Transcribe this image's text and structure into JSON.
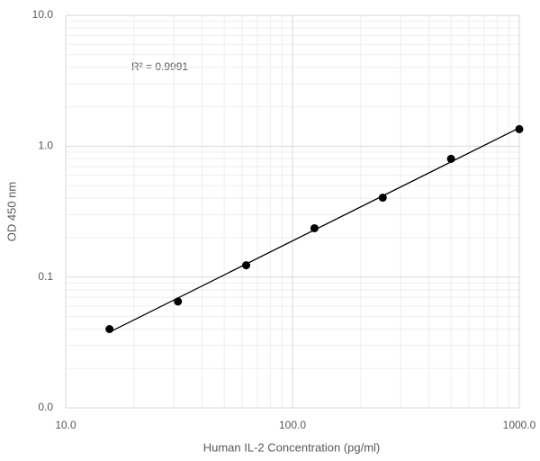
{
  "chart_data": {
    "type": "scatter",
    "x_label": "Human IL-2 Concentration (pg/ml)",
    "y_label": "OD 450 nm",
    "annotation": "R² = 0.9991",
    "x": [
      15.6,
      31.25,
      62.5,
      125,
      250,
      500,
      1000
    ],
    "values": [
      0.04,
      0.065,
      0.123,
      0.236,
      0.404,
      0.8,
      1.35
    ],
    "color": "#000000",
    "trendline": "power",
    "xlim": [
      10,
      1000
    ],
    "ylim": [
      0.01,
      10
    ],
    "xticks": [
      {
        "value": 10,
        "label": "10.0"
      },
      {
        "value": 100,
        "label": "100.0"
      },
      {
        "value": 1000,
        "label": "1000.0"
      }
    ],
    "yticks": [
      {
        "value": 0.01,
        "label": "0.0"
      },
      {
        "value": 0.1,
        "label": "0.1"
      },
      {
        "value": 1,
        "label": "1.0"
      },
      {
        "value": 10,
        "label": "10.0"
      }
    ],
    "xscale": "log",
    "yscale": "log",
    "grid": true,
    "minor_grid": true
  }
}
